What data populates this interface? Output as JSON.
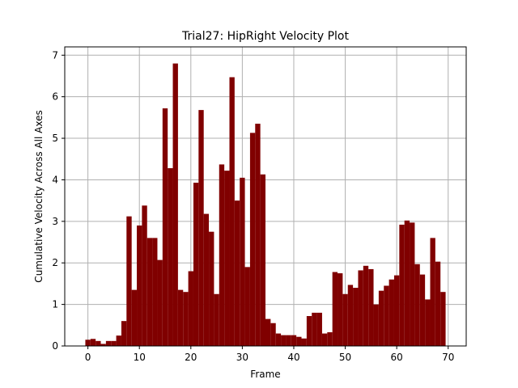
{
  "chart_data": {
    "type": "bar",
    "title": "Trial27: HipRight Velocity Plot",
    "xlabel": "Frame",
    "ylabel": "Cumulative Velocity Across All Axes",
    "xlim": [
      -4.5,
      73.5
    ],
    "ylim": [
      0,
      7.2
    ],
    "xticks": [
      0,
      10,
      20,
      30,
      40,
      50,
      60,
      70
    ],
    "yticks": [
      0,
      1,
      2,
      3,
      4,
      5,
      6,
      7
    ],
    "grid": true,
    "bar_color": "#800000",
    "x": [
      0,
      1,
      2,
      3,
      4,
      5,
      6,
      7,
      8,
      9,
      10,
      11,
      12,
      13,
      14,
      15,
      16,
      17,
      18,
      19,
      20,
      21,
      22,
      23,
      24,
      25,
      26,
      27,
      28,
      29,
      30,
      31,
      32,
      33,
      34,
      35,
      36,
      37,
      38,
      39,
      40,
      41,
      42,
      43,
      44,
      45,
      46,
      47,
      48,
      49,
      50,
      51,
      52,
      53,
      54,
      55,
      56,
      57,
      58,
      59,
      60,
      61,
      62,
      63,
      64,
      65,
      66,
      67,
      68,
      69
    ],
    "values": [
      0.15,
      0.17,
      0.12,
      0.05,
      0.12,
      0.12,
      0.25,
      0.6,
      3.12,
      1.35,
      2.9,
      3.38,
      2.6,
      2.6,
      2.07,
      5.72,
      4.28,
      6.8,
      1.35,
      1.3,
      1.8,
      3.93,
      5.68,
      3.18,
      2.75,
      1.25,
      4.37,
      4.22,
      6.47,
      3.5,
      4.05,
      1.9,
      5.13,
      5.35,
      4.13,
      0.65,
      0.55,
      0.3,
      0.26,
      0.26,
      0.26,
      0.22,
      0.18,
      0.72,
      0.8,
      0.8,
      0.3,
      0.33,
      1.78,
      1.75,
      1.25,
      1.47,
      1.4,
      1.82,
      1.93,
      1.85,
      1.0,
      1.33,
      1.45,
      1.6,
      1.7,
      2.92,
      3.02,
      2.97,
      1.97,
      1.72,
      1.12,
      2.6,
      2.03,
      1.3
    ]
  }
}
